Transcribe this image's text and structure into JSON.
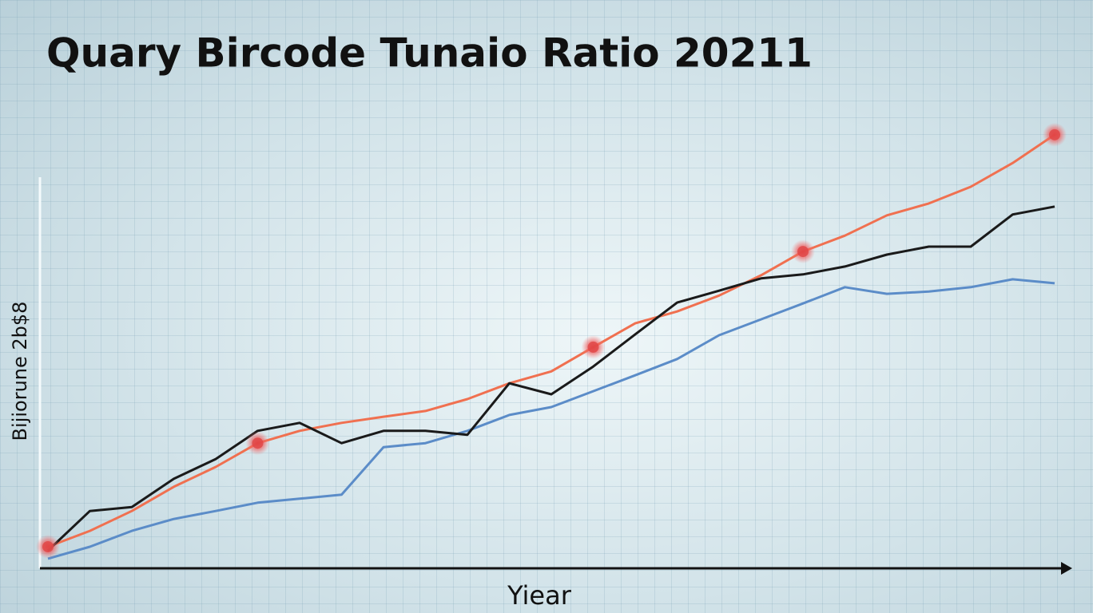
{
  "chart_data": {
    "type": "line",
    "title": "Quary Bircode Tunaio Ratio 20211",
    "y_label": "Bijiorune 2b$8",
    "x_label": "Yiear",
    "x": [
      0,
      1,
      2,
      3,
      4,
      5,
      6,
      7,
      8,
      9,
      10,
      11,
      12,
      13,
      14,
      15,
      16,
      17,
      18,
      19,
      20,
      21,
      22,
      23,
      24
    ],
    "xlim": [
      0,
      24
    ],
    "ylim": [
      0,
      100
    ],
    "grid": true,
    "series": [
      {
        "color": "#f07050",
        "values": [
          4.9,
          8.5,
          13.0,
          18.5,
          23.0,
          28.4,
          31.2,
          33.0,
          34.4,
          35.7,
          38.4,
          42.0,
          44.7,
          50.2,
          55.6,
          58.3,
          61.9,
          66.5,
          71.9,
          75.5,
          80.1,
          82.8,
          86.6,
          92.0,
          98.4
        ]
      },
      {
        "color": "#1a1a1a",
        "values": [
          4.0,
          13.0,
          13.9,
          20.3,
          24.8,
          31.2,
          33.0,
          28.4,
          31.2,
          31.2,
          30.3,
          42.0,
          39.5,
          45.8,
          53.1,
          60.3,
          63.0,
          65.8,
          66.7,
          68.5,
          71.2,
          73.0,
          73.0,
          80.3,
          82.1
        ]
      },
      {
        "color": "#5b8cc8",
        "values": [
          2.2,
          4.9,
          8.5,
          11.2,
          13.0,
          14.9,
          15.8,
          16.7,
          27.5,
          28.4,
          31.2,
          34.8,
          36.6,
          40.2,
          43.8,
          47.5,
          52.9,
          56.5,
          60.1,
          63.8,
          62.3,
          62.8,
          63.8,
          65.6,
          64.7
        ]
      }
    ],
    "markers": {
      "color": "#e04848",
      "x": [
        0,
        5,
        13,
        18,
        24
      ],
      "values": [
        4.9,
        28.4,
        50.2,
        71.9,
        98.4
      ]
    }
  }
}
